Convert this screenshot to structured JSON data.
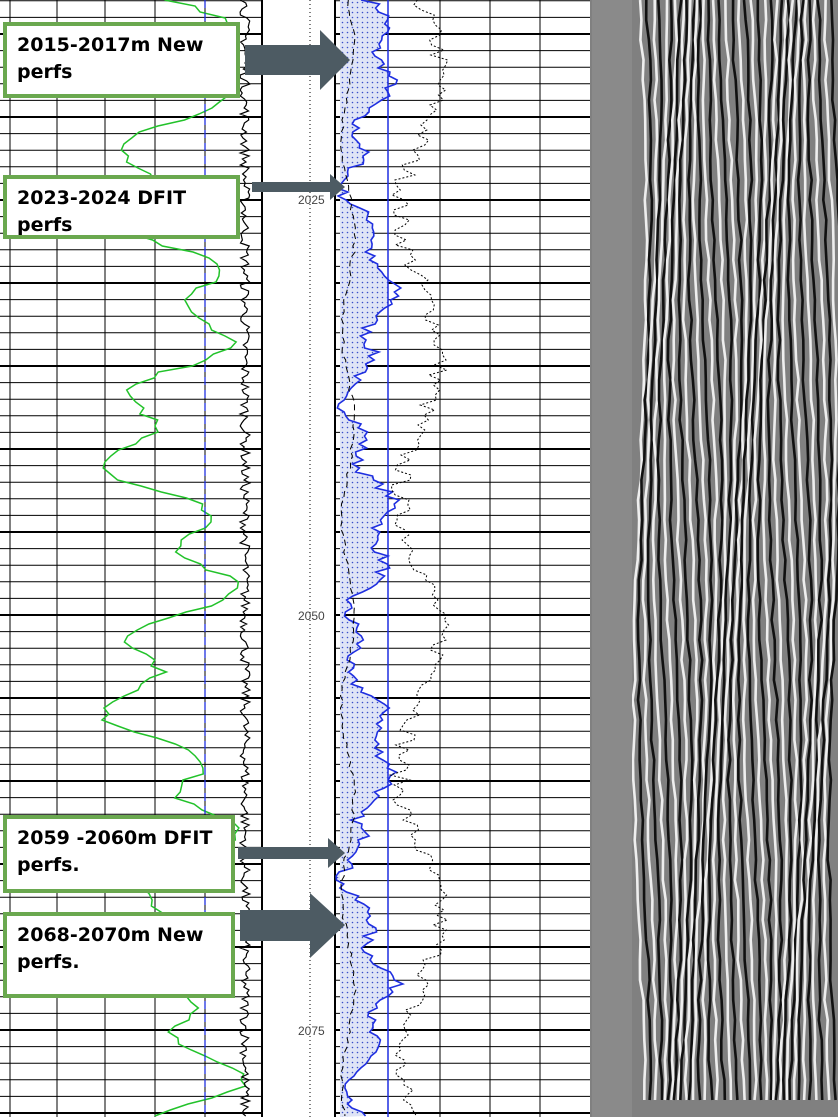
{
  "annotations": [
    {
      "label": "2015-2017m New perfs"
    },
    {
      "label": "2023-2024 DFIT perfs"
    },
    {
      "label": "2059 -2060m DFIT perfs."
    },
    {
      "label": "2068-2070m New perfs."
    }
  ],
  "depth_labels": [
    "2025",
    "2050",
    "2075"
  ]
}
